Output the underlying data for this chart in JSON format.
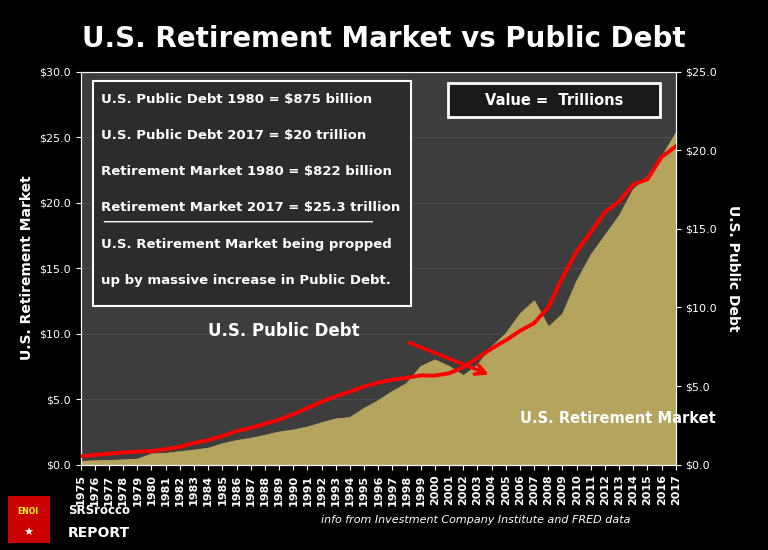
{
  "title": "U.S. Retirement Market vs Public Debt",
  "background_color": "#000000",
  "plot_bg_color": "#3d3d3d",
  "years": [
    1975,
    1976,
    1977,
    1978,
    1979,
    1980,
    1981,
    1982,
    1983,
    1984,
    1985,
    1986,
    1987,
    1988,
    1989,
    1990,
    1991,
    1992,
    1993,
    1994,
    1995,
    1996,
    1997,
    1998,
    1999,
    2000,
    2001,
    2002,
    2003,
    2004,
    2005,
    2006,
    2007,
    2008,
    2009,
    2010,
    2011,
    2012,
    2013,
    2014,
    2015,
    2016,
    2017
  ],
  "retirement_market": [
    0.26,
    0.3,
    0.33,
    0.37,
    0.43,
    0.82,
    0.87,
    1.0,
    1.12,
    1.26,
    1.6,
    1.85,
    2.02,
    2.25,
    2.5,
    2.65,
    2.88,
    3.2,
    3.5,
    3.6,
    4.3,
    4.9,
    5.6,
    6.2,
    7.5,
    8.0,
    7.5,
    6.8,
    7.6,
    9.0,
    10.0,
    11.5,
    12.5,
    10.5,
    11.5,
    14.0,
    16.0,
    17.5,
    19.0,
    21.0,
    22.0,
    23.5,
    25.3
  ],
  "public_debt": [
    0.54,
    0.62,
    0.7,
    0.78,
    0.83,
    0.875,
    0.99,
    1.14,
    1.38,
    1.57,
    1.82,
    2.13,
    2.34,
    2.6,
    2.86,
    3.21,
    3.6,
    4.0,
    4.35,
    4.64,
    4.97,
    5.22,
    5.41,
    5.53,
    5.68,
    5.67,
    5.81,
    6.2,
    6.78,
    7.38,
    7.91,
    8.51,
    9.0,
    10.02,
    11.9,
    13.56,
    14.78,
    16.07,
    16.74,
    17.82,
    18.15,
    19.57,
    20.24
  ],
  "left_ylim": [
    0,
    30
  ],
  "right_ylim": [
    0,
    25
  ],
  "left_yticks": [
    0,
    5,
    10,
    15,
    20,
    25,
    30
  ],
  "right_yticks": [
    0,
    5,
    10,
    15,
    20,
    25
  ],
  "ylabel_left": "U.S. Retirement Market",
  "ylabel_right": "U.S. Public Debt",
  "fill_color": "#b5a45e",
  "line_color": "#ff0000",
  "line_width": 2.8,
  "text_box_lines": [
    "U.S. Public Debt 1980 = $875 billion",
    "U.S. Public Debt 2017 = $20 trillion",
    "Retirement Market 1980 = $822 billion",
    "Retirement Market 2017 = $25.3 trillion",
    "U.S. Retirement Market being propped",
    "up by massive increase in Public Debt."
  ],
  "underline_line_index": 3,
  "value_box_text": "Value =  Trillions",
  "debt_label_text": "U.S. Public Debt",
  "retirement_label_text": "U.S. Retirement Market",
  "footer_text": "info from Investment Company Institute and FRED data",
  "title_fontsize": 20,
  "tick_label_fontsize": 8,
  "axis_label_fontsize": 10,
  "textbox_fontsize": 9.5
}
